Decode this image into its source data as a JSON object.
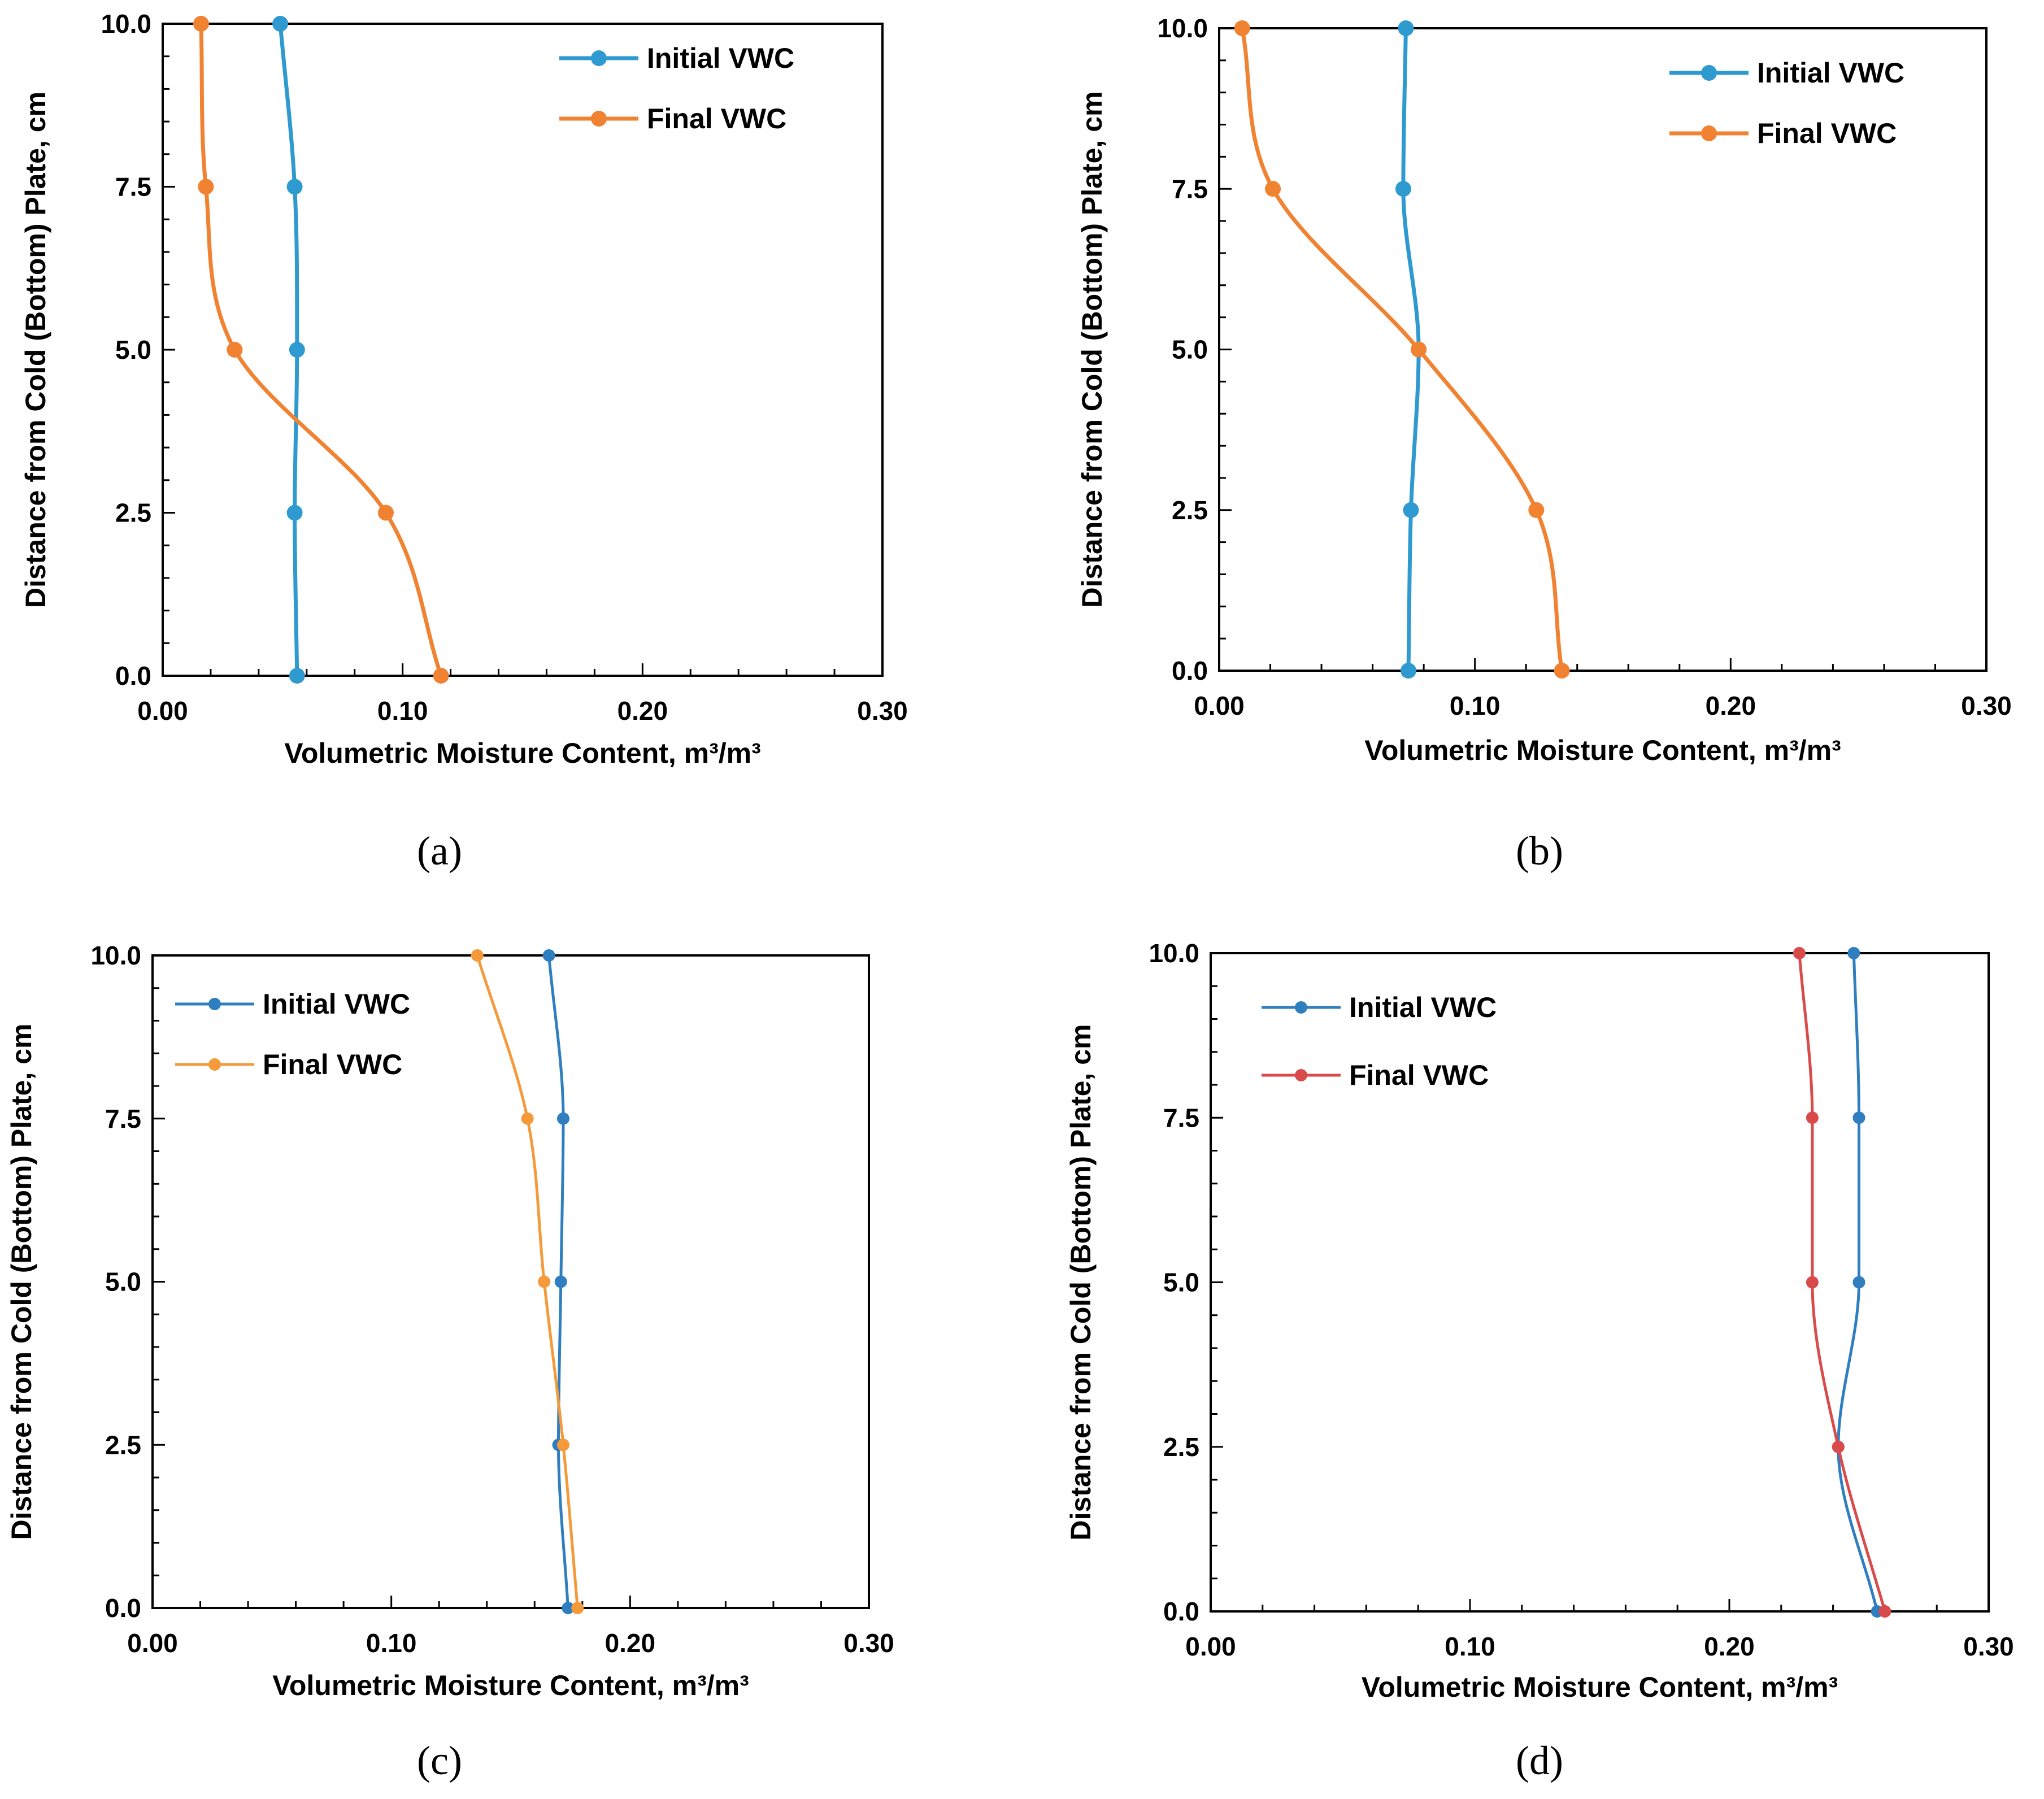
{
  "chart_data": [
    {
      "type": "line",
      "panel": "a",
      "caption": "(a)",
      "xlabel": "Volumetric Moisture Content, m³/m³",
      "ylabel": "Distance from Cold (Bottom) Plate, cm",
      "xlim": [
        0,
        0.3
      ],
      "ylim": [
        0,
        10
      ],
      "xticks": [
        "0.00",
        "0.10",
        "0.20",
        "0.30"
      ],
      "yticks": [
        "0.0",
        "2.5",
        "5.0",
        "7.5",
        "10.0"
      ],
      "legend_position": "top-right",
      "grid": false,
      "series": [
        {
          "name": "Initial VWC",
          "color": "#2E9AD0",
          "x": [
            0.056,
            0.055,
            0.056,
            0.055,
            0.049
          ],
          "y": [
            0.0,
            2.5,
            5.0,
            7.5,
            10.0
          ]
        },
        {
          "name": "Final VWC",
          "color": "#F08232",
          "x": [
            0.116,
            0.093,
            0.03,
            0.018,
            0.016
          ],
          "y": [
            0.0,
            2.5,
            5.0,
            7.5,
            10.0
          ]
        }
      ]
    },
    {
      "type": "line",
      "panel": "b",
      "caption": "(b)",
      "xlabel": "Volumetric Moisture Content, m³/m³",
      "ylabel": "Distance from Cold (Bottom) Plate, cm",
      "xlim": [
        0,
        0.3
      ],
      "ylim": [
        0,
        10
      ],
      "xticks": [
        "0.00",
        "0.10",
        "0.20",
        "0.30"
      ],
      "yticks": [
        "0.0",
        "2.5",
        "5.0",
        "7.5",
        "10.0"
      ],
      "legend_position": "top-right",
      "grid": false,
      "series": [
        {
          "name": "Initial VWC",
          "color": "#2E9AD0",
          "x": [
            0.074,
            0.075,
            0.078,
            0.072,
            0.073
          ],
          "y": [
            0.0,
            2.5,
            5.0,
            7.5,
            10.0
          ]
        },
        {
          "name": "Final VWC",
          "color": "#F08232",
          "x": [
            0.134,
            0.124,
            0.078,
            0.021,
            0.009
          ],
          "y": [
            0.0,
            2.5,
            5.0,
            7.5,
            10.0
          ]
        }
      ]
    },
    {
      "type": "line",
      "panel": "c",
      "caption": "(c)",
      "xlabel": "Volumetric Moisture Content, m³/m³",
      "ylabel": "Distance from Cold (Bottom) Plate, cm",
      "xlim": [
        0,
        0.3
      ],
      "ylim": [
        0,
        10
      ],
      "xticks": [
        "0.00",
        "0.10",
        "0.20",
        "0.30"
      ],
      "yticks": [
        "0.0",
        "2.5",
        "5.0",
        "7.5",
        "10.0"
      ],
      "legend_position": "top-left",
      "grid": false,
      "series": [
        {
          "name": "Initial VWC",
          "color": "#2E7EC0",
          "x": [
            0.174,
            0.17,
            0.171,
            0.172,
            0.166
          ],
          "y": [
            0.0,
            2.5,
            5.0,
            7.5,
            10.0
          ]
        },
        {
          "name": "Final VWC",
          "color": "#F59A3A",
          "x": [
            0.178,
            0.172,
            0.164,
            0.157,
            0.136
          ],
          "y": [
            0.0,
            2.5,
            5.0,
            7.5,
            10.0
          ]
        }
      ]
    },
    {
      "type": "line",
      "panel": "d",
      "caption": "(d)",
      "xlabel": "Volumetric Moisture Content, m³/m³",
      "ylabel": "Distance from Cold (Bottom) Plate, cm",
      "xlim": [
        0,
        0.3
      ],
      "ylim": [
        0,
        10
      ],
      "xticks": [
        "0.00",
        "0.10",
        "0.20",
        "0.30"
      ],
      "yticks": [
        "0.0",
        "2.5",
        "5.0",
        "7.5",
        "10.0"
      ],
      "legend_position": "top-left",
      "grid": false,
      "series": [
        {
          "name": "Initial VWC",
          "color": "#2E7EC0",
          "x": [
            0.257,
            0.242,
            0.25,
            0.25,
            0.248
          ],
          "y": [
            0.0,
            2.5,
            5.0,
            7.5,
            10.0
          ]
        },
        {
          "name": "Final VWC",
          "color": "#D94A4A",
          "x": [
            0.26,
            0.242,
            0.232,
            0.232,
            0.227
          ],
          "y": [
            0.0,
            2.5,
            5.0,
            7.5,
            10.0
          ]
        }
      ]
    }
  ]
}
